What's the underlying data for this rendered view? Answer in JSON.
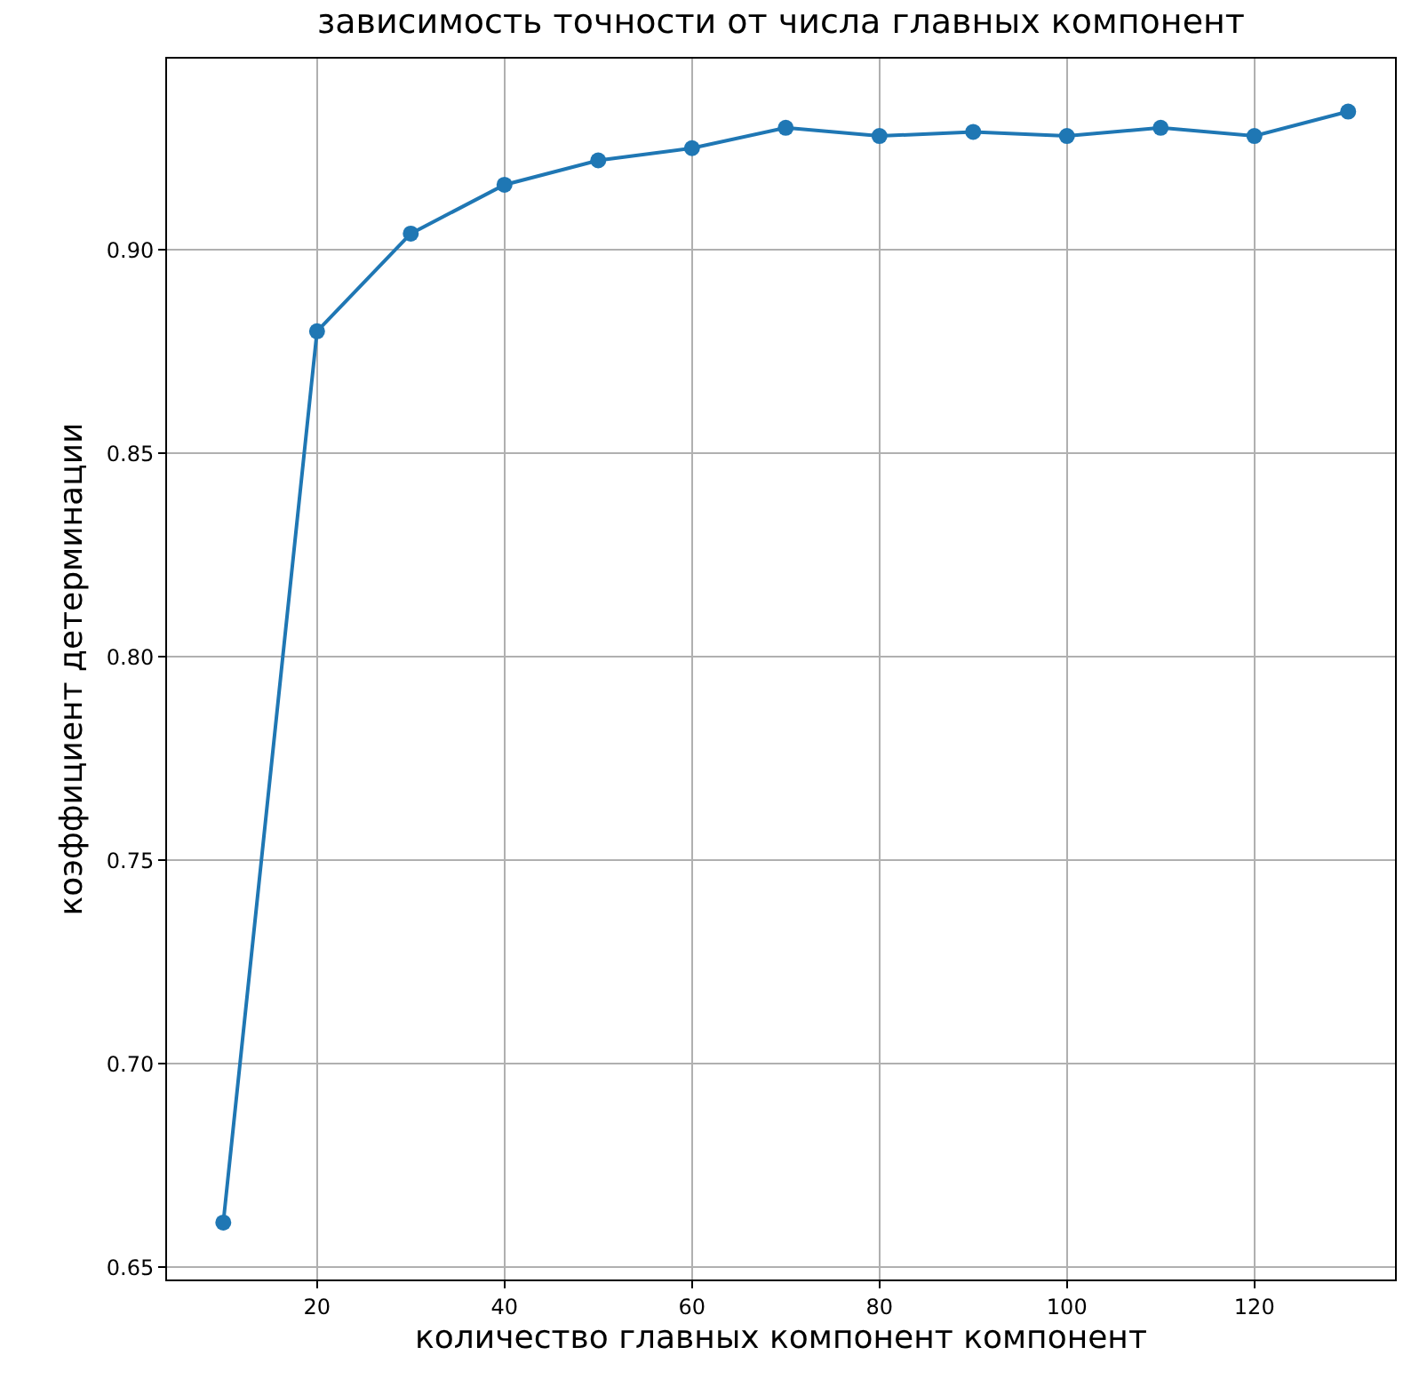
{
  "chart_data": {
    "type": "line",
    "title": "зависимость точности от числа главных компонент",
    "xlabel": "количество главных компонент компонент",
    "ylabel": "коэффициент детерминации",
    "x": [
      10,
      20,
      30,
      40,
      50,
      60,
      70,
      80,
      90,
      100,
      110,
      120,
      130
    ],
    "series": [
      {
        "color": "#1f77b4",
        "values": [
          0.661,
          0.88,
          0.904,
          0.916,
          0.922,
          0.925,
          0.93,
          0.928,
          0.929,
          0.928,
          0.93,
          0.928,
          0.934
        ]
      }
    ],
    "xlim": [
      4,
      135
    ],
    "ylim": [
      0.647,
      0.947
    ],
    "xticks": [
      20,
      40,
      60,
      80,
      100,
      120
    ],
    "yticks": [
      {
        "value": 0.65,
        "label": "0.65"
      },
      {
        "value": 0.7,
        "label": "0.70"
      },
      {
        "value": 0.75,
        "label": "0.75"
      },
      {
        "value": 0.8,
        "label": "0.80"
      },
      {
        "value": 0.85,
        "label": "0.85"
      },
      {
        "value": 0.9,
        "label": "0.90"
      }
    ],
    "grid": true,
    "marker": "circle",
    "line_style": "solid"
  }
}
